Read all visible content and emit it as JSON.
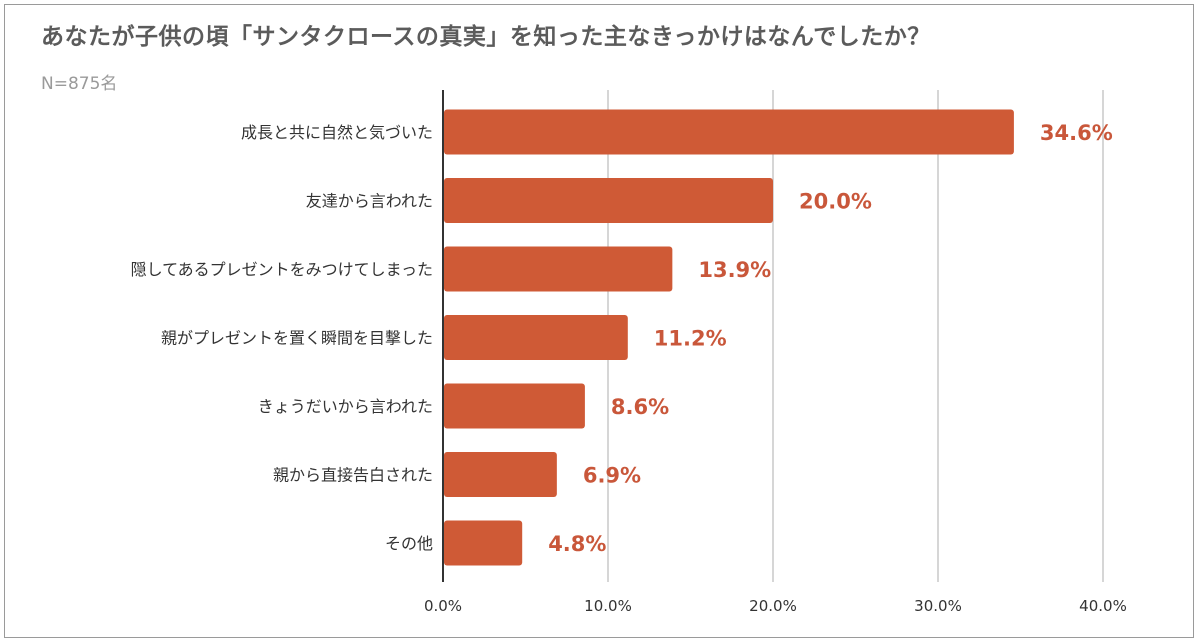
{
  "title": "あなたが子供の頃「サンタクロースの真実」を知った主なきっかけはなんでしたか？",
  "subtitle": "N=875名",
  "colors": {
    "bar": "#cf5a36",
    "label": "#c9573a",
    "grid": "#d6d6d6",
    "axis": "#333333"
  },
  "chart_data": {
    "type": "bar",
    "orientation": "horizontal",
    "title": "あなたが子供の頃「サンタクロースの真実」を知った主なきっかけはなんでしたか？",
    "subtitle": "N=875名",
    "categories": [
      "成長と共に自然と気づいた",
      "友達から言われた",
      "隠してあるプレゼントをみつけてしまった",
      "親がプレゼントを置く瞬間を目撃した",
      "きょうだいから言われた",
      "親から直接告白された",
      "その他"
    ],
    "values": [
      34.6,
      20.0,
      13.9,
      11.2,
      8.6,
      6.9,
      4.8
    ],
    "value_labels": [
      "34.6%",
      "20.0%",
      "13.9%",
      "11.2%",
      "8.6%",
      "6.9%",
      "4.8%"
    ],
    "xlim": [
      0,
      40
    ],
    "ticks": [
      0,
      10,
      20,
      30,
      40
    ],
    "tick_labels": [
      "0.0%",
      "10.0%",
      "20.0%",
      "30.0%",
      "40.0%"
    ],
    "xlabel": "",
    "ylabel": "",
    "grid": true,
    "legend": "none"
  }
}
